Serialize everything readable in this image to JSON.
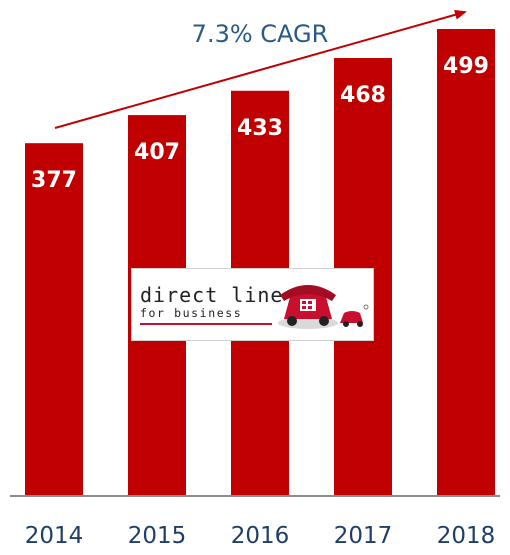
{
  "chart_data": {
    "type": "bar",
    "categories": [
      "2014",
      "2015",
      "2016",
      "2017",
      "2018"
    ],
    "values": [
      377,
      407,
      433,
      468,
      499
    ],
    "annotation": "7.3% CAGR",
    "ylim": [
      0,
      530
    ],
    "grid": false,
    "bar_color": "#c00000"
  },
  "logo": {
    "line1": "direct line",
    "line2": "for business",
    "accent_color": "#c8102e"
  },
  "colors": {
    "annotation_text": "#2b5a86",
    "arrow": "#c00000",
    "value_label": "#ffffff",
    "axis_label": "#1f3f66"
  }
}
